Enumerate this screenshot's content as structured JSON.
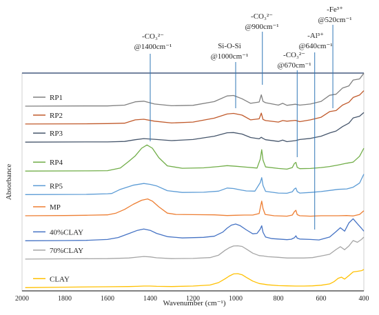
{
  "chart_data": {
    "type": "line",
    "xlabel": "Wavenumber (cm⁻¹)",
    "ylabel": "Absorbance",
    "xlim": [
      2000,
      400
    ],
    "x_reversed": true,
    "y_ticks_shown": false,
    "grid": false,
    "legend_placement": "left, inline beside each trace",
    "x_ticks": [
      "2000",
      "1800",
      "1600",
      "1400",
      "1200",
      "1000",
      "800",
      "600",
      "400"
    ],
    "x_tick_values": [
      2000,
      1800,
      1600,
      1400,
      1200,
      1000,
      800,
      600,
      400
    ],
    "annotations": [
      {
        "line1": "-CO₃²⁻",
        "line2": "@1400cm⁻¹",
        "x": 1400
      },
      {
        "line1": "Si-O-Si",
        "line2": "@1000cm⁻¹",
        "x": 1000
      },
      {
        "line1": "-CO₃²⁻",
        "line2": "@900cm⁻¹",
        "x": 875
      },
      {
        "line1": "-CO₃²⁻",
        "line2": "@670cm⁻¹",
        "x": 712
      },
      {
        "line1": "-Al³⁺",
        "line2": "@640cm⁻¹",
        "x": 630
      },
      {
        "line1": "-Fe³⁺",
        "line2": "@520cm⁻¹",
        "x": 545
      }
    ],
    "series": [
      {
        "name": "RP1",
        "color": "#7f7f7f",
        "x": [
          1985,
          1700,
          1600,
          1520,
          1470,
          1430,
          1380,
          1300,
          1200,
          1100,
          1040,
          1010,
          970,
          930,
          890,
          880,
          872,
          860,
          800,
          780,
          760,
          720,
          700,
          650,
          600,
          560,
          530,
          500,
          470,
          450,
          420,
          400
        ],
        "y": [
          0.848,
          0.849,
          0.849,
          0.853,
          0.868,
          0.871,
          0.858,
          0.85,
          0.852,
          0.869,
          0.895,
          0.897,
          0.882,
          0.861,
          0.867,
          0.9,
          0.87,
          0.864,
          0.853,
          0.861,
          0.852,
          0.857,
          0.853,
          0.858,
          0.87,
          0.898,
          0.903,
          0.931,
          0.941,
          0.968,
          0.973,
          0.999
        ]
      },
      {
        "name": "RP2",
        "color": "#c0592a",
        "x": [
          1985,
          1700,
          1600,
          1520,
          1470,
          1430,
          1380,
          1300,
          1200,
          1100,
          1040,
          1010,
          970,
          930,
          890,
          880,
          872,
          860,
          800,
          780,
          760,
          720,
          700,
          650,
          600,
          560,
          530,
          500,
          470,
          450,
          420,
          400
        ],
        "y": [
          0.766,
          0.767,
          0.768,
          0.77,
          0.785,
          0.788,
          0.779,
          0.771,
          0.775,
          0.793,
          0.812,
          0.815,
          0.807,
          0.785,
          0.79,
          0.816,
          0.787,
          0.782,
          0.775,
          0.782,
          0.779,
          0.783,
          0.777,
          0.785,
          0.797,
          0.823,
          0.828,
          0.853,
          0.866,
          0.888,
          0.899,
          0.919
        ]
      },
      {
        "name": "RP3",
        "color": "#44546a",
        "x": [
          1985,
          1700,
          1600,
          1520,
          1470,
          1430,
          1380,
          1300,
          1200,
          1100,
          1040,
          1010,
          970,
          930,
          890,
          880,
          872,
          860,
          800,
          780,
          760,
          720,
          700,
          650,
          600,
          560,
          530,
          500,
          470,
          450,
          420,
          400
        ],
        "y": [
          0.683,
          0.684,
          0.684,
          0.686,
          0.694,
          0.699,
          0.696,
          0.69,
          0.695,
          0.71,
          0.726,
          0.727,
          0.72,
          0.704,
          0.698,
          0.705,
          0.7,
          0.694,
          0.686,
          0.692,
          0.685,
          0.69,
          0.695,
          0.7,
          0.71,
          0.725,
          0.734,
          0.754,
          0.77,
          0.794,
          0.802,
          0.819
        ]
      },
      {
        "name": "RP4",
        "color": "#70ad47",
        "x": [
          1985,
          1700,
          1600,
          1540,
          1500,
          1470,
          1440,
          1415,
          1390,
          1360,
          1320,
          1250,
          1150,
          1080,
          1040,
          1000,
          950,
          900,
          885,
          878,
          872,
          860,
          800,
          760,
          735,
          725,
          718,
          712,
          700,
          650,
          600,
          560,
          520,
          480,
          450,
          420,
          400
        ],
        "y": [
          0.55,
          0.551,
          0.552,
          0.564,
          0.595,
          0.62,
          0.655,
          0.67,
          0.655,
          0.612,
          0.574,
          0.563,
          0.565,
          0.571,
          0.575,
          0.572,
          0.568,
          0.564,
          0.605,
          0.648,
          0.6,
          0.569,
          0.562,
          0.559,
          0.566,
          0.585,
          0.59,
          0.567,
          0.561,
          0.562,
          0.566,
          0.571,
          0.578,
          0.586,
          0.591,
          0.618,
          0.655
        ]
      },
      {
        "name": "RP5",
        "color": "#5b9bd5",
        "x": [
          1985,
          1700,
          1600,
          1580,
          1540,
          1480,
          1430,
          1400,
          1370,
          1320,
          1250,
          1150,
          1080,
          1040,
          1010,
          980,
          950,
          910,
          885,
          878,
          872,
          860,
          800,
          760,
          735,
          725,
          718,
          712,
          700,
          650,
          600,
          560,
          520,
          480,
          450,
          420,
          400
        ],
        "y": [
          0.442,
          0.443,
          0.446,
          0.447,
          0.466,
          0.485,
          0.493,
          0.489,
          0.482,
          0.46,
          0.452,
          0.453,
          0.458,
          0.472,
          0.47,
          0.464,
          0.459,
          0.458,
          0.497,
          0.52,
          0.484,
          0.457,
          0.449,
          0.448,
          0.455,
          0.468,
          0.472,
          0.456,
          0.449,
          0.452,
          0.456,
          0.461,
          0.466,
          0.468,
          0.476,
          0.495,
          0.536
        ]
      },
      {
        "name": "MP",
        "color": "#ed7d31",
        "x": [
          1985,
          1800,
          1700,
          1600,
          1560,
          1520,
          1480,
          1440,
          1412,
          1390,
          1360,
          1320,
          1280,
          1200,
          1100,
          1040,
          1000,
          960,
          920,
          890,
          884,
          878,
          872,
          862,
          820,
          760,
          735,
          725,
          718,
          712,
          700,
          650,
          600,
          560,
          520,
          480,
          450,
          420,
          400
        ],
        "y": [
          0.345,
          0.346,
          0.347,
          0.349,
          0.357,
          0.374,
          0.397,
          0.416,
          0.422,
          0.412,
          0.386,
          0.357,
          0.351,
          0.35,
          0.349,
          0.346,
          0.347,
          0.348,
          0.348,
          0.355,
          0.386,
          0.412,
          0.378,
          0.351,
          0.345,
          0.343,
          0.348,
          0.364,
          0.37,
          0.35,
          0.345,
          0.343,
          0.345,
          0.345,
          0.345,
          0.346,
          0.344,
          0.351,
          0.368
        ]
      },
      {
        "name": "40%CLAY",
        "color": "#4472c4",
        "x": [
          1985,
          1800,
          1700,
          1600,
          1550,
          1500,
          1460,
          1430,
          1400,
          1370,
          1320,
          1250,
          1150,
          1100,
          1060,
          1040,
          1020,
          1000,
          980,
          950,
          920,
          900,
          885,
          878,
          872,
          860,
          830,
          800,
          760,
          740,
          725,
          718,
          712,
          700,
          650,
          610,
          560,
          530,
          510,
          490,
          470,
          450,
          430,
          410,
          400
        ],
        "y": [
          0.23,
          0.231,
          0.232,
          0.236,
          0.245,
          0.263,
          0.278,
          0.284,
          0.278,
          0.264,
          0.249,
          0.243,
          0.246,
          0.251,
          0.27,
          0.288,
          0.302,
          0.307,
          0.3,
          0.28,
          0.262,
          0.264,
          0.284,
          0.299,
          0.269,
          0.247,
          0.24,
          0.238,
          0.235,
          0.237,
          0.244,
          0.253,
          0.242,
          0.238,
          0.236,
          0.234,
          0.247,
          0.272,
          0.29,
          0.274,
          0.312,
          0.331,
          0.308,
          0.286,
          0.274
        ]
      },
      {
        "name": "70%CLAY",
        "color": "#a5a5a5",
        "x": [
          1985,
          1800,
          1600,
          1500,
          1460,
          1430,
          1400,
          1370,
          1300,
          1200,
          1120,
          1080,
          1050,
          1030,
          1010,
          990,
          970,
          950,
          920,
          890,
          870,
          850,
          800,
          760,
          720,
          680,
          640,
          600,
          560,
          530,
          510,
          490,
          470,
          450,
          430,
          410,
          400
        ],
        "y": [
          0.146,
          0.147,
          0.148,
          0.151,
          0.155,
          0.158,
          0.156,
          0.152,
          0.148,
          0.149,
          0.153,
          0.164,
          0.186,
          0.198,
          0.206,
          0.207,
          0.204,
          0.192,
          0.173,
          0.162,
          0.16,
          0.157,
          0.154,
          0.151,
          0.151,
          0.151,
          0.153,
          0.16,
          0.168,
          0.19,
          0.203,
          0.189,
          0.206,
          0.231,
          0.223,
          0.237,
          0.247
        ]
      },
      {
        "name": "CLAY",
        "color": "#ffc000",
        "x": [
          1985,
          1800,
          1600,
          1500,
          1460,
          1430,
          1400,
          1370,
          1300,
          1200,
          1120,
          1080,
          1050,
          1030,
          1010,
          990,
          970,
          950,
          920,
          890,
          870,
          850,
          800,
          760,
          720,
          680,
          640,
          600,
          560,
          540,
          520,
          505,
          490,
          470,
          450,
          430,
          410,
          400
        ],
        "y": [
          0.015,
          0.017,
          0.019,
          0.02,
          0.021,
          0.022,
          0.022,
          0.021,
          0.02,
          0.022,
          0.027,
          0.038,
          0.055,
          0.068,
          0.078,
          0.079,
          0.074,
          0.062,
          0.045,
          0.034,
          0.031,
          0.028,
          0.024,
          0.023,
          0.022,
          0.022,
          0.023,
          0.026,
          0.032,
          0.042,
          0.058,
          0.063,
          0.054,
          0.07,
          0.087,
          0.09,
          0.093,
          0.098
        ]
      }
    ]
  }
}
